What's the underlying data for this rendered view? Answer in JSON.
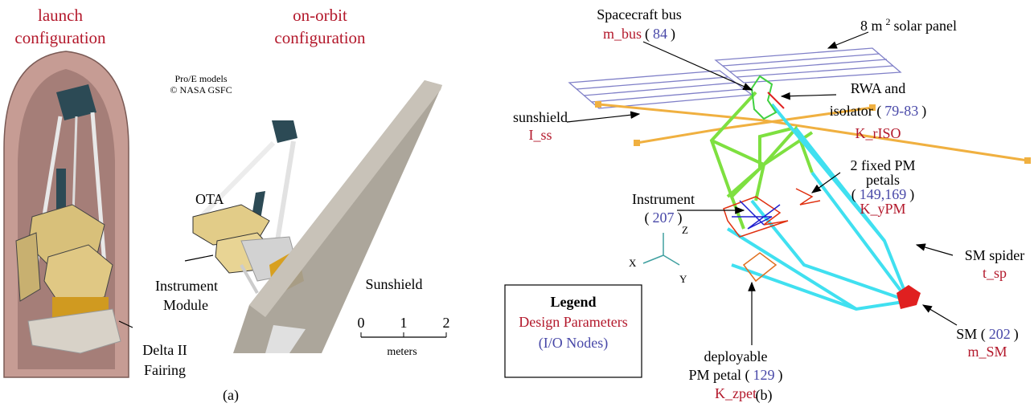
{
  "panel_a": {
    "launch_label": [
      "launch",
      "configuration"
    ],
    "orbit_label": [
      "on-orbit",
      "configuration"
    ],
    "credit": [
      "Pro/E models",
      "© NASA GSFC"
    ],
    "ota": "OTA",
    "instrument_module": [
      "Instrument",
      "Module"
    ],
    "fairing": [
      "Delta II",
      "Fairing"
    ],
    "sunshield": "Sunshield",
    "scale": {
      "ticks": [
        0,
        1,
        2
      ],
      "unit": "meters"
    },
    "caption": "(a)"
  },
  "panel_b": {
    "callouts": [
      {
        "lines": [
          [
            {
              "text": "Spacecraft bus"
            }
          ],
          [
            {
              "text": "m_bus",
              "style": "param"
            },
            {
              "text": "("
            },
            {
              "text": "84",
              "style": "node"
            },
            {
              "text": ")"
            }
          ]
        ]
      },
      {
        "lines": [
          [
            {
              "text": "8 m"
            },
            {
              "text": "2",
              "style": "sup"
            },
            {
              "text": "solar panel"
            }
          ]
        ]
      },
      {
        "lines": [
          [
            {
              "text": "RWA and"
            }
          ],
          [
            {
              "text": "isolator ("
            },
            {
              "text": "79-83",
              "style": "node"
            },
            {
              "text": ")"
            }
          ],
          [
            {
              "text": "K_rISO",
              "style": "param"
            }
          ]
        ]
      },
      {
        "lines": [
          [
            {
              "text": "sunshield"
            }
          ],
          [
            {
              "text": "I_ss",
              "style": "param"
            }
          ]
        ]
      },
      {
        "lines": [
          [
            {
              "text": "2 fixed PM"
            }
          ],
          [
            {
              "text": "petals"
            }
          ],
          [
            {
              "text": "("
            },
            {
              "text": "149,169",
              "style": "node"
            },
            {
              "text": ")"
            }
          ],
          [
            {
              "text": "K_yPM",
              "style": "param"
            }
          ]
        ]
      },
      {
        "lines": [
          [
            {
              "text": "Instrument"
            }
          ],
          [
            {
              "text": "("
            },
            {
              "text": "207",
              "style": "node"
            },
            {
              "text": ")"
            }
          ]
        ]
      },
      {
        "lines": [
          [
            {
              "text": "SM spider"
            }
          ],
          [
            {
              "text": "t_sp",
              "style": "param"
            }
          ]
        ]
      },
      {
        "lines": [
          [
            {
              "text": "deployable"
            }
          ],
          [
            {
              "text": "PM petal ("
            },
            {
              "text": "129",
              "style": "node"
            },
            {
              "text": ")"
            }
          ],
          [
            {
              "text": "K_zpet",
              "style": "param"
            }
          ]
        ]
      },
      {
        "lines": [
          [
            {
              "text": "SM ("
            },
            {
              "text": "202",
              "style": "node"
            },
            {
              "text": ")"
            }
          ],
          [
            {
              "text": "m_SM",
              "style": "param"
            }
          ]
        ]
      }
    ],
    "axes": {
      "z": "Z",
      "x": "X",
      "y": "Y"
    },
    "legend": {
      "title": "Legend",
      "design": "Design Parameters",
      "nodes": "(I/O Nodes)"
    },
    "caption": "(b)"
  }
}
